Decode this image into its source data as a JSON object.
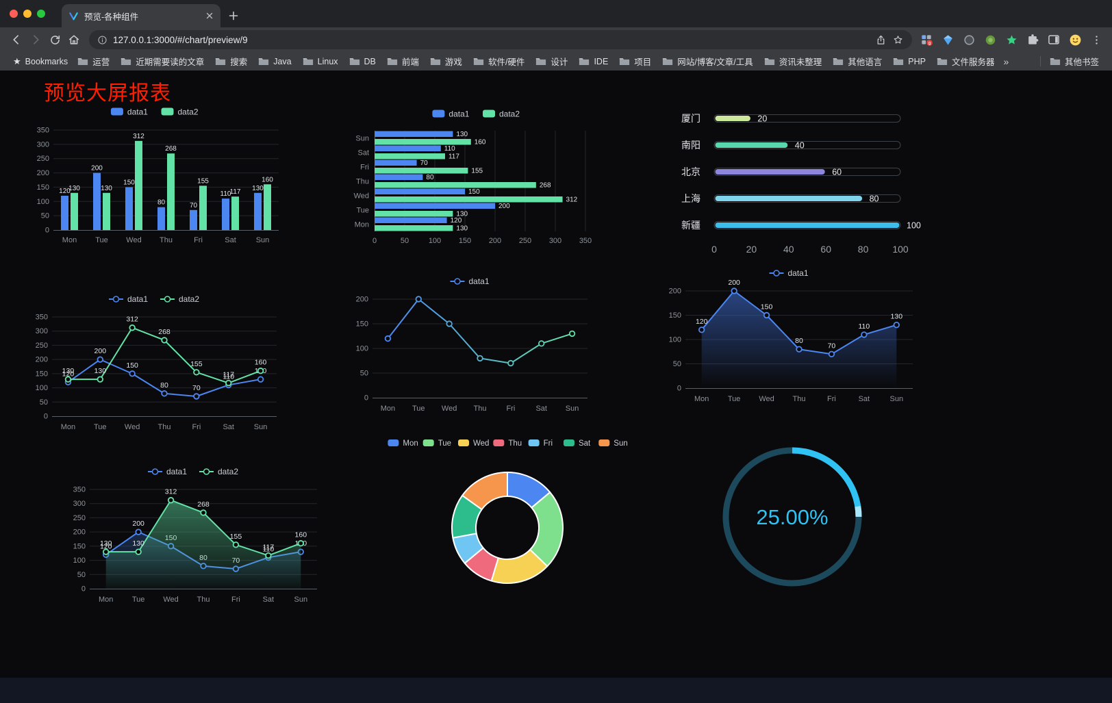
{
  "browser": {
    "tab": {
      "title": "预览-各种组件"
    },
    "url": "127.0.0.1:3000/#/chart/preview/9",
    "bookmarks_bar": {
      "root_label": "Bookmarks",
      "folders": [
        "运营",
        "近期需要读的文章",
        "搜索",
        "Java",
        "Linux",
        "DB",
        "前端",
        "游戏",
        "软件/硬件",
        "设计",
        "IDE",
        "项目",
        "网站/博客/文章/工具",
        "资讯未整理",
        "其他语言",
        "PHP",
        "文件服务器"
      ],
      "overflow": "»",
      "other_bookmarks": "其他书签"
    }
  },
  "page": {
    "title": "预览大屏报表",
    "title_color": "#ff1e00"
  },
  "colors": {
    "data1": "#4c86f0",
    "data2": "#63e2a8",
    "gauge": "#2fc2f2",
    "background": "#0a0a0c"
  },
  "chart_data": [
    {
      "id": "bar-vertical",
      "type": "bar",
      "categories": [
        "Mon",
        "Tue",
        "Wed",
        "Thu",
        "Fri",
        "Sat",
        "Sun"
      ],
      "series": [
        {
          "name": "data1",
          "color": "#4c86f0",
          "values": [
            120,
            200,
            150,
            80,
            70,
            110,
            130
          ]
        },
        {
          "name": "data2",
          "color": "#63e2a8",
          "values": [
            130,
            130,
            312,
            268,
            155,
            117,
            160
          ]
        }
      ],
      "ylim": [
        0,
        350
      ],
      "ystep": 50,
      "value_labels": true
    },
    {
      "id": "bar-horizontal",
      "type": "hbar",
      "categories": [
        "Mon",
        "Tue",
        "Wed",
        "Thu",
        "Fri",
        "Sat",
        "Sun"
      ],
      "series": [
        {
          "name": "data1",
          "color": "#4c86f0",
          "values": [
            120,
            200,
            150,
            80,
            70,
            110,
            130
          ]
        },
        {
          "name": "data2",
          "color": "#63e2a8",
          "values": [
            130,
            130,
            312,
            268,
            155,
            117,
            160
          ]
        }
      ],
      "xlim": [
        0,
        350
      ],
      "xstep": 50,
      "value_labels": true
    },
    {
      "id": "progress-bars",
      "type": "progress",
      "max": 100,
      "xticks": [
        0,
        20,
        40,
        60,
        80,
        100
      ],
      "items": [
        {
          "label": "厦门",
          "value": 20,
          "color": "#cde89b"
        },
        {
          "label": "南阳",
          "value": 40,
          "color": "#58d6ad"
        },
        {
          "label": "北京",
          "value": 60,
          "color": "#8d86de"
        },
        {
          "label": "上海",
          "value": 80,
          "color": "#7fd3ea"
        },
        {
          "label": "新疆",
          "value": 100,
          "color": "#3cbdea"
        }
      ]
    },
    {
      "id": "line-two",
      "type": "line",
      "categories": [
        "Mon",
        "Tue",
        "Wed",
        "Thu",
        "Fri",
        "Sat",
        "Sun"
      ],
      "series": [
        {
          "name": "data1",
          "color": "#4c86f0",
          "values": [
            120,
            200,
            150,
            80,
            70,
            110,
            130
          ]
        },
        {
          "name": "data2",
          "color": "#63e2a8",
          "values": [
            130,
            130,
            312,
            268,
            155,
            117,
            160
          ]
        }
      ],
      "ylim": [
        0,
        350
      ],
      "ystep": 50,
      "value_labels": true
    },
    {
      "id": "line-gradient",
      "type": "line",
      "categories": [
        "Mon",
        "Tue",
        "Wed",
        "Thu",
        "Fri",
        "Sat",
        "Sun"
      ],
      "series": [
        {
          "name": "data1",
          "color": "#4c86f0",
          "gradient": [
            "#4c86f0",
            "#63e2a8"
          ],
          "values": [
            120,
            200,
            150,
            80,
            70,
            110,
            130
          ]
        }
      ],
      "ylim": [
        0,
        200
      ],
      "ystep": 50,
      "value_labels": false
    },
    {
      "id": "line-area-blue",
      "type": "line",
      "categories": [
        "Mon",
        "Tue",
        "Wed",
        "Thu",
        "Fri",
        "Sat",
        "Sun"
      ],
      "series": [
        {
          "name": "data1",
          "color": "#4c86f0",
          "area": [
            "rgba(58,100,190,0.65)",
            "rgba(58,100,190,0)"
          ],
          "values": [
            120,
            200,
            150,
            80,
            70,
            110,
            130
          ]
        }
      ],
      "ylim": [
        0,
        200
      ],
      "ystep": 50,
      "value_labels": true
    },
    {
      "id": "line-area-two",
      "type": "line",
      "categories": [
        "Mon",
        "Tue",
        "Wed",
        "Thu",
        "Fri",
        "Sat",
        "Sun"
      ],
      "series": [
        {
          "name": "data1",
          "color": "#4c86f0",
          "area": [
            "rgba(45,85,150,0.45)",
            "rgba(45,85,150,0)"
          ],
          "values": [
            120,
            200,
            150,
            80,
            70,
            110,
            130
          ]
        },
        {
          "name": "data2",
          "color": "#63e2a8",
          "area": [
            "rgba(85,200,145,0.55)",
            "rgba(85,200,145,0.04)"
          ],
          "values": [
            130,
            130,
            312,
            268,
            155,
            117,
            160
          ]
        }
      ],
      "ylim": [
        0,
        350
      ],
      "ystep": 50,
      "value_labels": true
    },
    {
      "id": "donut",
      "type": "pie",
      "categories": [
        "Mon",
        "Tue",
        "Wed",
        "Thu",
        "Fri",
        "Sat",
        "Sun"
      ],
      "values": [
        120,
        200,
        150,
        80,
        70,
        110,
        130
      ],
      "colors": [
        "#4c86f0",
        "#7ee08d",
        "#f7d154",
        "#ee6a7c",
        "#6fc6f2",
        "#2dbd8c",
        "#f6964d"
      ]
    },
    {
      "id": "gauge",
      "type": "gauge",
      "percent": 25,
      "label": "25.00%",
      "color": "#2fc2f2",
      "tip_color": "#a8e6fb",
      "track_color": "#1c4a5c"
    }
  ]
}
